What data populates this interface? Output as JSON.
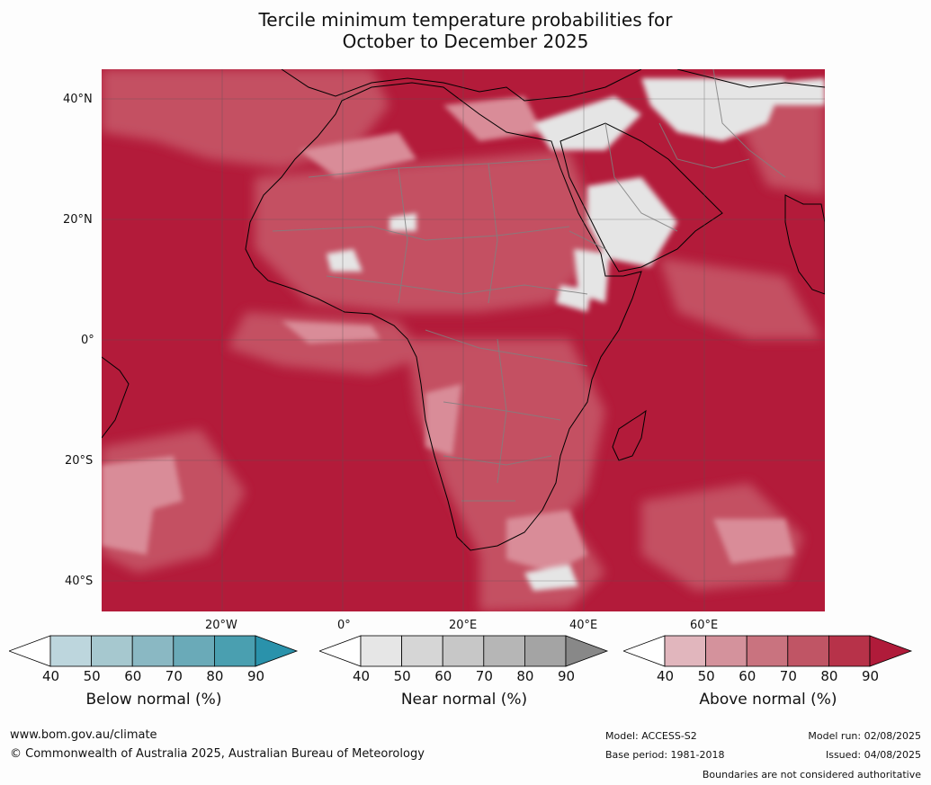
{
  "title": {
    "line1": "Tercile minimum temperature probabilities for",
    "line2": "October to December 2025"
  },
  "map": {
    "lat_labels": [
      "40°N",
      "20°N",
      "0°",
      "20°S",
      "40°S"
    ],
    "lon_labels": [
      "20°W",
      "0°",
      "20°E",
      "40°E",
      "60°E"
    ],
    "colors": {
      "ocean_dark": "#b31b3a",
      "mid": "#c55265",
      "light": "#d98c98",
      "pale": "#e4b5bb",
      "near_normal": "#e5e5e5",
      "coast": "#000000",
      "borders": "#808080"
    }
  },
  "colorbars": [
    {
      "label": "Below normal (%)",
      "ticks": [
        "40",
        "50",
        "60",
        "70",
        "80",
        "90"
      ],
      "colors": [
        "#ffffff",
        "#bdd6dd",
        "#a6c8cf",
        "#8ab8c3",
        "#6aaab8",
        "#4a9fb0",
        "#2a92ab"
      ]
    },
    {
      "label": "Near normal (%)",
      "ticks": [
        "40",
        "50",
        "60",
        "70",
        "80",
        "90"
      ],
      "colors": [
        "#ffffff",
        "#e6e6e6",
        "#d6d6d6",
        "#c7c7c7",
        "#b6b6b6",
        "#a4a4a4",
        "#888888"
      ]
    },
    {
      "label": "Above normal (%)",
      "ticks": [
        "40",
        "50",
        "60",
        "70",
        "80",
        "90"
      ],
      "colors": [
        "#ffffff",
        "#e1b6bd",
        "#d4929c",
        "#c9737f",
        "#c05565",
        "#b73249",
        "#b01b3a"
      ]
    }
  ],
  "footer": {
    "url": "www.bom.gov.au/climate",
    "copyright": "© Commonwealth of Australia 2025, Australian Bureau of Meteorology",
    "model": "Model: ACCESS-S2",
    "base_period": "Base period: 1981-2018",
    "model_run": "Model run: 02/08/2025",
    "issued": "Issued: 04/08/2025",
    "disclaimer": "Boundaries are not considered authoritative"
  }
}
